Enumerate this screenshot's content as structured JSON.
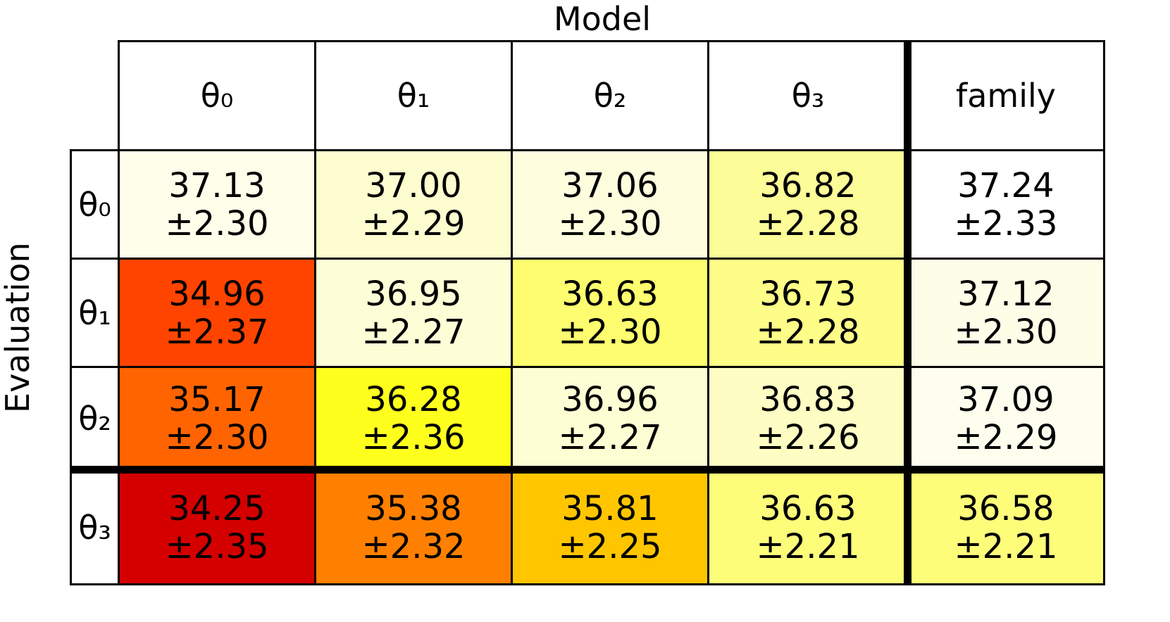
{
  "title": "Model",
  "row_axis_label": "Evaluation",
  "columns": [
    "θ₀",
    "θ₁",
    "θ₂",
    "θ₃",
    "family"
  ],
  "rows": [
    {
      "label": "θ₀",
      "cells": [
        {
          "mean": "37.13",
          "std": "±2.30",
          "color": "#fefeea"
        },
        {
          "mean": "37.00",
          "std": "±2.29",
          "color": "#fdfdcf"
        },
        {
          "mean": "37.06",
          "std": "±2.30",
          "color": "#fefedf"
        },
        {
          "mean": "36.82",
          "std": "±2.28",
          "color": "#fcfc98"
        },
        {
          "mean": "37.24",
          "std": "±2.33",
          "color": "#ffffff"
        }
      ]
    },
    {
      "label": "θ₁",
      "cells": [
        {
          "mean": "34.96",
          "std": "±2.37",
          "color": "#ff4400"
        },
        {
          "mean": "36.95",
          "std": "±2.27",
          "color": "#fefed6"
        },
        {
          "mean": "36.63",
          "std": "±2.30",
          "color": "#fdfd6f"
        },
        {
          "mean": "36.73",
          "std": "±2.28",
          "color": "#fdfd88"
        },
        {
          "mean": "37.12",
          "std": "±2.30",
          "color": "#fefee8"
        }
      ]
    },
    {
      "label": "θ₂",
      "cells": [
        {
          "mean": "35.17",
          "std": "±2.30",
          "color": "#ff6400"
        },
        {
          "mean": "36.28",
          "std": "±2.36",
          "color": "#ffff1e"
        },
        {
          "mean": "36.96",
          "std": "±2.27",
          "color": "#fefed4"
        },
        {
          "mean": "36.83",
          "std": "±2.26",
          "color": "#fdfdc4"
        },
        {
          "mean": "37.09",
          "std": "±2.29",
          "color": "#fefeef"
        }
      ]
    },
    {
      "label": "θ₃",
      "cells": [
        {
          "mean": "34.25",
          "std": "±2.35",
          "color": "#d40000"
        },
        {
          "mean": "35.38",
          "std": "±2.32",
          "color": "#ff8000"
        },
        {
          "mean": "35.81",
          "std": "±2.25",
          "color": "#ffc600"
        },
        {
          "mean": "36.63",
          "std": "±2.21",
          "color": "#fdfd7a"
        },
        {
          "mean": "36.58",
          "std": "±2.21",
          "color": "#fdfd7a"
        }
      ]
    }
  ]
}
